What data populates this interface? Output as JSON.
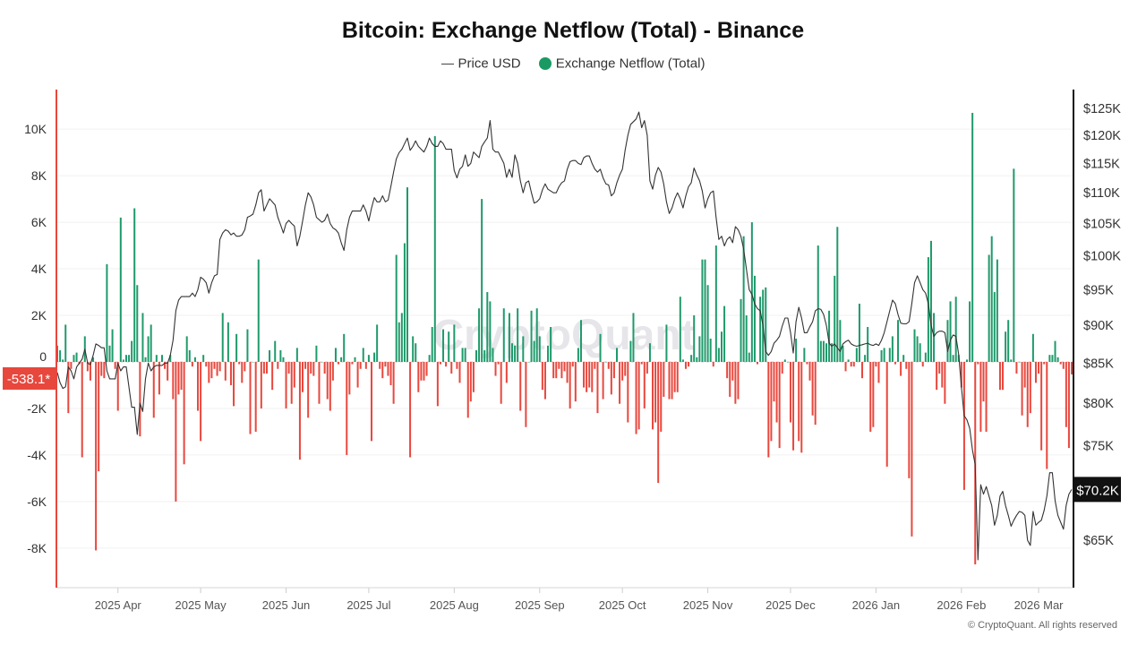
{
  "title": "Bitcoin: Exchange Netflow (Total) - Binance",
  "legend": {
    "price_label": "Price USD",
    "netflow_label": "Exchange Netflow (Total)"
  },
  "watermark": "CryptoQuant",
  "footer": "© CryptoQuant. All rights reserved",
  "colors": {
    "inflow": "#1f9a6b",
    "outflow": "#e8473d",
    "price": "#333333",
    "left_axis": "#e8473d",
    "right_axis": "#111111",
    "legend_dot": "#1a9a62"
  },
  "chart_data": {
    "type": "bar+line",
    "title": "Bitcoin: Exchange Netflow (Total) - Binance",
    "xlim": [
      "2025-03-10",
      "2026-03-13"
    ],
    "ylim_left": [
      -9700,
      11700
    ],
    "ylim_right": [
      60500,
      128600
    ],
    "right_scale": "log",
    "grid": true,
    "legend_position": "top-center",
    "x_ticks": [
      {
        "date": "2025-04-01",
        "label": "2025 Apr"
      },
      {
        "date": "2025-05-01",
        "label": "2025 May"
      },
      {
        "date": "2025-06-01",
        "label": "2025 Jun"
      },
      {
        "date": "2025-07-01",
        "label": "2025 Jul"
      },
      {
        "date": "2025-08-01",
        "label": "2025 Aug"
      },
      {
        "date": "2025-09-01",
        "label": "2025 Sep"
      },
      {
        "date": "2025-10-01",
        "label": "2025 Oct"
      },
      {
        "date": "2025-11-01",
        "label": "2025 Nov"
      },
      {
        "date": "2025-12-01",
        "label": "2025 Dec"
      },
      {
        "date": "2026-01-01",
        "label": "2026 Jan"
      },
      {
        "date": "2026-02-01",
        "label": "2026 Feb"
      },
      {
        "date": "2026-03-01",
        "label": "2026 Mar"
      }
    ],
    "left_ticks": [
      {
        "value": 10000,
        "label": "10K"
      },
      {
        "value": 8000,
        "label": "8K"
      },
      {
        "value": 6000,
        "label": "6K"
      },
      {
        "value": 4000,
        "label": "4K"
      },
      {
        "value": 2000,
        "label": "2K"
      },
      {
        "value": 0,
        "label": "0"
      },
      {
        "value": -2000,
        "label": "-2K"
      },
      {
        "value": -4000,
        "label": "-4K"
      },
      {
        "value": -6000,
        "label": "-6K"
      },
      {
        "value": -8000,
        "label": "-8K"
      }
    ],
    "right_ticks": [
      {
        "value": 125000,
        "label": "$125K"
      },
      {
        "value": 120000,
        "label": "$120K"
      },
      {
        "value": 115000,
        "label": "$115K"
      },
      {
        "value": 110000,
        "label": "$110K"
      },
      {
        "value": 105000,
        "label": "$105K"
      },
      {
        "value": 100000,
        "label": "$100K"
      },
      {
        "value": 95000,
        "label": "$95K"
      },
      {
        "value": 90000,
        "label": "$90K"
      },
      {
        "value": 85000,
        "label": "$85K"
      },
      {
        "value": 80000,
        "label": "$80K"
      },
      {
        "value": 75000,
        "label": "$75K"
      },
      {
        "value": 65000,
        "label": "$65K"
      }
    ],
    "latest_netflow": {
      "value": -538.1,
      "label": "-538.1*"
    },
    "latest_price": {
      "value": 70200,
      "label": "$70.2K"
    },
    "netflow_daily": [
      {
        "month": "2025-03",
        "first_day": 10,
        "values": [
          700,
          500,
          100,
          1600,
          -2200,
          -300,
          300,
          400,
          -100,
          -4100,
          1100,
          -400,
          -800,
          200,
          -8100,
          -4700,
          -600,
          -700,
          4200,
          700,
          1400,
          -300
        ]
      },
      {
        "month": "2025-04",
        "first_day": 1,
        "values": [
          -2100,
          6200,
          100,
          300,
          300,
          900,
          6600,
          3300,
          -3200,
          2100,
          200,
          1100,
          1600,
          -2400,
          300,
          -1400,
          300,
          -300,
          -800,
          300,
          -1600,
          -6000,
          -1400,
          -1200,
          -4400,
          1100,
          500,
          -200,
          200,
          -2100
        ]
      },
      {
        "month": "2025-05",
        "first_day": 1,
        "values": [
          -3400,
          300,
          -200,
          -900,
          -700,
          -300,
          -600,
          -400,
          2100,
          -800,
          1700,
          -1000,
          -1900,
          1200,
          -100,
          -900,
          -400,
          1400,
          -3100,
          0,
          -3000,
          4400,
          -2000,
          -500,
          -500,
          500,
          -1200,
          900,
          -300,
          500,
          200
        ]
      },
      {
        "month": "2025-06",
        "first_day": 1,
        "values": [
          -2000,
          -500,
          -1800,
          -1100,
          600,
          -4200,
          -1300,
          -300,
          -2400,
          -500,
          -600,
          700,
          -1800,
          0,
          -500,
          -1600,
          -2100,
          -800,
          600,
          -100,
          200,
          1200,
          -4000,
          -1400,
          -100,
          200,
          -1100,
          -300,
          600,
          -300
        ]
      },
      {
        "month": "2025-07",
        "first_day": 1,
        "values": [
          300,
          -3400,
          400,
          1600,
          -300,
          -700,
          -200,
          -600,
          -1000,
          -1800,
          4600,
          1700,
          2100,
          5100,
          7500,
          -4100,
          1100,
          800,
          -1300,
          -800,
          -800,
          -600,
          300,
          1500,
          9700,
          -1900,
          -100,
          1400,
          -200,
          1300,
          -500
        ]
      },
      {
        "month": "2025-08",
        "first_day": 1,
        "values": [
          1600,
          -300,
          -900,
          600,
          600,
          -2400,
          -1700,
          -1300,
          500,
          2300,
          7000,
          500,
          3000,
          2600,
          600,
          -600,
          -100,
          -1800,
          2300,
          -900,
          2100,
          800,
          700,
          2300,
          -2100,
          1100,
          -2800,
          0,
          2200,
          900,
          2300
        ]
      },
      {
        "month": "2025-09",
        "first_day": 1,
        "values": [
          1100,
          -1200,
          -1600,
          700,
          1500,
          -700,
          -700,
          -300,
          -700,
          -400,
          -900,
          -2000,
          -200,
          -1700,
          600,
          1800,
          -1100,
          -1300,
          -1100,
          -1300,
          -300,
          -2200,
          1200,
          -1600,
          0,
          -300,
          -1400,
          -700,
          600,
          -1800
        ]
      },
      {
        "month": "2025-10",
        "first_day": 1,
        "values": [
          -800,
          -600,
          -2600,
          900,
          2100,
          -3100,
          -2900,
          -100,
          -2000,
          -500,
          800,
          -2900,
          -2600,
          -5200,
          -3000,
          -1500,
          1600,
          -1600,
          -1600,
          -1300,
          -1300,
          2800,
          100,
          -300,
          -200,
          300,
          2000,
          200,
          1100,
          4400,
          4400
        ]
      },
      {
        "month": "2025-11",
        "first_day": 1,
        "values": [
          3300,
          1000,
          -200,
          5000,
          600,
          1300,
          2400,
          -700,
          -1500,
          -800,
          -1800,
          -1600,
          2700,
          5400,
          2000,
          400,
          6000,
          3700,
          -100,
          2800,
          3100,
          3200,
          -4100,
          -3400,
          -1700,
          -2600,
          -3700,
          -500,
          100,
          0
        ]
      },
      {
        "month": "2025-12",
        "first_day": 1,
        "values": [
          -2600,
          -3800,
          1000,
          -3400,
          -3900,
          600,
          -100,
          -800,
          -2300,
          -2700,
          5000,
          900,
          900,
          800,
          2200,
          800,
          3700,
          5800,
          1800,
          700,
          -400,
          100,
          -200,
          -200,
          600,
          2500,
          -700,
          300,
          1500,
          -3000,
          -2800
        ]
      },
      {
        "month": "2026-01",
        "first_day": 1,
        "values": [
          -200,
          -900,
          500,
          600,
          -4500,
          600,
          1100,
          -100,
          1800,
          -600,
          300,
          -300,
          -5000,
          -7500,
          1400,
          1100,
          800,
          -200,
          400,
          4500,
          5200,
          2100,
          -1200,
          -500,
          -1100,
          -1800,
          1800,
          2600,
          300,
          2800,
          300
        ]
      },
      {
        "month": "2026-02",
        "first_day": 1,
        "values": [
          -1100,
          -5500,
          100,
          2600,
          10700,
          -8700,
          -100,
          -3000,
          -1700,
          -3000,
          4600,
          5400,
          3000,
          4400,
          -1200,
          -1200,
          1300,
          1800,
          100,
          8300,
          -500,
          0,
          -2300,
          -1100,
          -2800,
          -2200,
          1200,
          -900
        ]
      },
      {
        "month": "2026-03",
        "first_day": 1,
        "values": [
          -500,
          -3800,
          -100,
          -4600,
          300,
          300,
          900,
          200,
          -100,
          -300,
          -2800,
          -3700,
          -538.1
        ]
      }
    ],
    "price_daily": [
      {
        "month": "2025-03",
        "first_day": 10,
        "values": [
          83800,
          82500,
          81800,
          82000,
          84500,
          84000,
          83000,
          84500,
          85000,
          85500,
          86800,
          85000,
          84800,
          86000,
          87500,
          87300,
          87000,
          87000,
          84000,
          83000,
          83000,
          83000
        ]
      },
      {
        "month": "2025-04",
        "first_day": 1,
        "values": [
          85000,
          84000,
          84500,
          84500,
          82000,
          79500,
          79500,
          76300,
          80000,
          79000,
          83000,
          85000,
          84000,
          84500,
          84700,
          84700,
          84700,
          85000,
          85000,
          86000,
          88000,
          92000,
          93500,
          94000,
          94000,
          94000,
          94000,
          94500,
          94000,
          95000
        ]
      },
      {
        "month": "2025-05",
        "first_day": 1,
        "values": [
          96800,
          96500,
          96000,
          94500,
          96000,
          97000,
          97200,
          102500,
          103500,
          104000,
          103800,
          103200,
          103500,
          103000,
          103000,
          103200,
          104000,
          106000,
          106200,
          106500,
          108000,
          110000,
          110500,
          107000,
          108000,
          109000,
          108500,
          108000,
          106000,
          104800,
          103500
        ]
      },
      {
        "month": "2025-06",
        "first_day": 1,
        "values": [
          105000,
          105500,
          105000,
          104600,
          101500,
          103000,
          105400,
          108000,
          110000,
          109300,
          108000,
          106000,
          105600,
          105200,
          105500,
          106500,
          105000,
          104300,
          104000,
          103500,
          102000,
          100800,
          104000,
          106000,
          107000,
          107000,
          107000,
          107000,
          108000,
          107000
        ]
      },
      {
        "month": "2025-07",
        "first_day": 1,
        "values": [
          105400,
          107500,
          109200,
          108500,
          108500,
          109500,
          108500,
          108800,
          111000,
          113500,
          115800,
          116900,
          117500,
          118500,
          119500,
          117300,
          118000,
          119000,
          118000,
          117500,
          117000,
          118000,
          119500,
          118500,
          118000,
          118000,
          119000,
          118500,
          117500,
          117500,
          117500
        ]
      },
      {
        "month": "2025-08",
        "first_day": 1,
        "values": [
          113800,
          112500,
          114000,
          114500,
          116500,
          114500,
          115000,
          117000,
          116500,
          116000,
          118000,
          118800,
          119500,
          122700,
          117500,
          117000,
          117000,
          116000,
          115000,
          112600,
          114000,
          112600,
          116500,
          115000,
          112000,
          110000,
          111700,
          112000,
          110000,
          108300,
          108500
        ]
      },
      {
        "month": "2025-09",
        "first_day": 1,
        "values": [
          109000,
          110500,
          111500,
          110600,
          110300,
          110000,
          110000,
          111000,
          111700,
          112000,
          114000,
          115300,
          115500,
          115500,
          115000,
          114800,
          116000,
          116300,
          116300,
          115000,
          114000,
          113500,
          114000,
          112500,
          111500,
          111300,
          109500,
          110000,
          111700,
          113000
        ]
      },
      {
        "month": "2025-10",
        "first_day": 1,
        "values": [
          114000,
          117300,
          120000,
          122000,
          122500,
          123000,
          124300,
          121400,
          122700,
          120000,
          112000,
          110600,
          113000,
          114300,
          113500,
          111500,
          108500,
          106600,
          107500,
          109000,
          110000,
          109000,
          107500,
          109500,
          111000,
          111700,
          114200,
          113000,
          112000,
          110300,
          107500
        ]
      },
      {
        "month": "2025-11",
        "first_day": 1,
        "values": [
          109000,
          110000,
          110300,
          106000,
          102500,
          103000,
          101500,
          102500,
          102900,
          102000,
          104500,
          104000,
          103000,
          101000,
          98000,
          95000,
          94300,
          93000,
          92300,
          92000,
          90000,
          86500,
          86000,
          86500,
          87600,
          88000,
          88500,
          89900,
          91000,
          91000
        ]
      },
      {
        "month": "2025-12",
        "first_day": 1,
        "values": [
          89000,
          86300,
          90500,
          92500,
          91000,
          89000,
          89000,
          89800,
          90500,
          92000,
          92300,
          92200,
          91500,
          90000,
          87600,
          87200,
          87500,
          87000,
          86500,
          87500,
          87800,
          88000,
          87500,
          87300,
          87200,
          87300,
          87400,
          87500,
          87600,
          87400,
          87300
        ]
      },
      {
        "month": "2026-01",
        "first_day": 1,
        "values": [
          87500,
          87300,
          88000,
          89000,
          90500,
          92000,
          93500,
          93000,
          91500,
          90300,
          90200,
          90200,
          90500,
          93000,
          96000,
          97000,
          96000,
          95000,
          94500,
          93000,
          90000,
          88500,
          89000,
          89200,
          89200,
          89000,
          86500,
          88000,
          88700,
          88500,
          86100
        ]
      },
      {
        "month": "2026-02",
        "first_day": 1,
        "values": [
          82000,
          78500,
          78000,
          77000,
          74500,
          72900,
          63100,
          70700,
          69700,
          70500,
          69500,
          68500,
          66500,
          67500,
          69500,
          70000,
          68500,
          67500,
          66400,
          67000,
          67500,
          67900,
          67800,
          67500,
          65000,
          64500,
          67900,
          66500
        ]
      },
      {
        "month": "2026-03",
        "first_day": 1,
        "values": [
          66800,
          67000,
          68000,
          69500,
          72000,
          72000,
          69000,
          67500,
          66800,
          66100,
          68500,
          69700,
          70200
        ]
      }
    ]
  }
}
